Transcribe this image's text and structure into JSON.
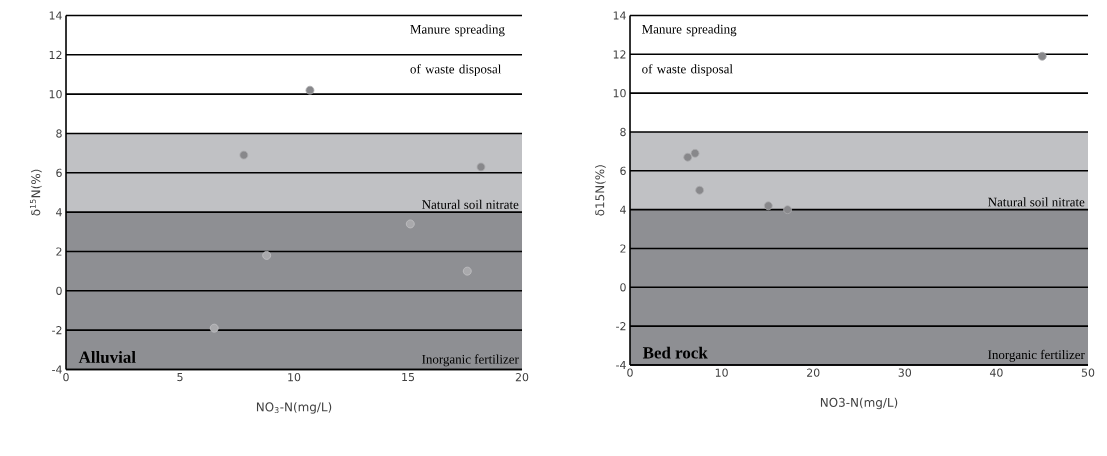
{
  "chart_data": [
    {
      "type": "scatter",
      "title": "Alluvial",
      "xlabel": "NO$_{3}$-N(mg/L)",
      "ylabel": "δ$^{15}$N(%)",
      "series": [
        {
          "color": "#88888b",
          "x": [
            10.7,
            7.8,
            18.2
          ],
          "values": [
            10.2,
            6.9,
            6.3
          ]
        },
        {
          "color": "#a9a9ac",
          "x": [
            15.1,
            8.8,
            17.6,
            6.5
          ],
          "values": [
            3.4,
            1.8,
            1.0,
            -1.9
          ]
        }
      ],
      "xlim": [
        0,
        20
      ],
      "xticks": [
        0,
        5,
        10,
        15,
        20
      ],
      "ylim": [
        -4,
        14
      ],
      "yticks": [
        -4,
        -2,
        0,
        2,
        4,
        6,
        8,
        10,
        12,
        14
      ],
      "grid": "y",
      "marker": "circle",
      "bands": [
        {
          "axis": "y",
          "from": 4,
          "to": 8,
          "label": "Natural soil nitrate",
          "color": "#c0c1c4"
        },
        {
          "axis": "y",
          "from": -4,
          "to": 4,
          "label": "Inorganic fertilizer",
          "color": "#8e8f93"
        }
      ],
      "annotations": [
        "Manure spreading of waste disposal"
      ]
    },
    {
      "type": "scatter",
      "title": "Bed rock",
      "xlabel": "NO3-N(mg/L)",
      "ylabel": "δ15N(%)",
      "series": [
        {
          "color": "#88888b",
          "x": [
            6.3,
            7.1,
            7.6,
            15.1,
            17.2,
            45.0
          ],
          "values": [
            6.7,
            6.9,
            5.0,
            4.2,
            4.0,
            11.9
          ]
        }
      ],
      "xlim": [
        0,
        50
      ],
      "xticks": [
        0,
        10,
        20,
        30,
        40,
        50
      ],
      "ylim": [
        -4,
        14
      ],
      "yticks": [
        -4,
        -2,
        0,
        2,
        4,
        6,
        8,
        10,
        12,
        14
      ],
      "grid": "y",
      "marker": "circle",
      "bands": [
        {
          "axis": "y",
          "from": 4,
          "to": 8,
          "label": "Natural soil nitrate",
          "color": "#c0c1c4"
        },
        {
          "axis": "y",
          "from": -4,
          "to": 4,
          "label": "Inorganic fertilizer",
          "color": "#8e8f93"
        }
      ],
      "annotations": [
        "Manure spreading of waste disposal"
      ]
    }
  ]
}
